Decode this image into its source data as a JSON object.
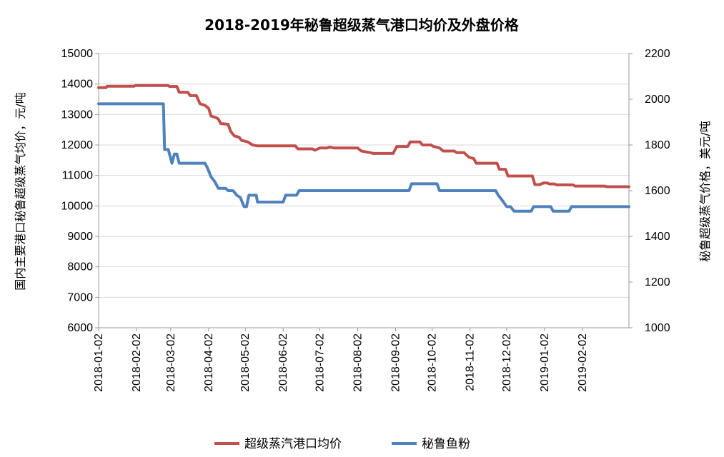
{
  "chart_data": {
    "type": "line",
    "title": "2018-2019年秘鲁超级蒸气港口均价及外盘价格",
    "xlabel": "",
    "ylabel_left": "国内主要港口秘鲁超级蒸气均价，元/吨",
    "ylabel_right": "秘鲁超级蒸气价格，美元/吨",
    "ylim_left": [
      6000,
      15000
    ],
    "ylim_right": [
      1000,
      2200
    ],
    "yticks_left": [
      "6000",
      "7000",
      "8000",
      "9000",
      "10000",
      "11000",
      "12000",
      "13000",
      "14000",
      "15000"
    ],
    "yticks_right": [
      "1000",
      "1200",
      "1400",
      "1600",
      "1800",
      "2000",
      "2200"
    ],
    "xticks": [
      "2018-01-02",
      "2018-02-02",
      "2018-03-02",
      "2018-04-02",
      "2018-05-02",
      "2018-06-02",
      "2018-07-02",
      "2018-08-02",
      "2018-09-02",
      "2018-10-02",
      "2018-11-02",
      "2018-12-02",
      "2019-01-02",
      "2019-02-02"
    ],
    "xlim": [
      "2018-01-02",
      "2019-03-12"
    ],
    "grid": "horizontal",
    "legend_position": "bottom",
    "series": [
      {
        "name": "超级蒸汽港口均价",
        "axis": "left",
        "color": "#C0504D",
        "points": [
          [
            "2018-01-02",
            13880
          ],
          [
            "2018-01-08",
            13880
          ],
          [
            "2018-01-09",
            13930
          ],
          [
            "2018-01-31",
            13930
          ],
          [
            "2018-02-01",
            13950
          ],
          [
            "2018-02-28",
            13950
          ],
          [
            "2018-03-01",
            13920
          ],
          [
            "2018-03-07",
            13920
          ],
          [
            "2018-03-09",
            13730
          ],
          [
            "2018-03-16",
            13730
          ],
          [
            "2018-03-18",
            13620
          ],
          [
            "2018-03-23",
            13620
          ],
          [
            "2018-03-26",
            13350
          ],
          [
            "2018-03-30",
            13300
          ],
          [
            "2018-04-02",
            13200
          ],
          [
            "2018-04-04",
            12950
          ],
          [
            "2018-04-08",
            12900
          ],
          [
            "2018-04-10",
            12850
          ],
          [
            "2018-04-12",
            12700
          ],
          [
            "2018-04-18",
            12680
          ],
          [
            "2018-04-20",
            12450
          ],
          [
            "2018-04-23",
            12300
          ],
          [
            "2018-04-27",
            12250
          ],
          [
            "2018-04-29",
            12150
          ],
          [
            "2018-05-04",
            12100
          ],
          [
            "2018-05-08",
            12000
          ],
          [
            "2018-05-12",
            11970
          ],
          [
            "2018-06-12",
            11970
          ],
          [
            "2018-06-14",
            11870
          ],
          [
            "2018-06-26",
            11870
          ],
          [
            "2018-06-28",
            11830
          ],
          [
            "2018-07-02",
            11900
          ],
          [
            "2018-07-08",
            11900
          ],
          [
            "2018-07-10",
            11930
          ],
          [
            "2018-07-14",
            11900
          ],
          [
            "2018-08-02",
            11900
          ],
          [
            "2018-08-05",
            11800
          ],
          [
            "2018-08-12",
            11750
          ],
          [
            "2018-08-15",
            11720
          ],
          [
            "2018-08-31",
            11720
          ],
          [
            "2018-09-03",
            11950
          ],
          [
            "2018-09-12",
            11950
          ],
          [
            "2018-09-14",
            12100
          ],
          [
            "2018-09-22",
            12100
          ],
          [
            "2018-09-24",
            12000
          ],
          [
            "2018-10-01",
            12000
          ],
          [
            "2018-10-03",
            11950
          ],
          [
            "2018-10-08",
            11900
          ],
          [
            "2018-10-11",
            11800
          ],
          [
            "2018-10-20",
            11800
          ],
          [
            "2018-10-22",
            11750
          ],
          [
            "2018-10-28",
            11750
          ],
          [
            "2018-11-01",
            11600
          ],
          [
            "2018-11-05",
            11550
          ],
          [
            "2018-11-07",
            11400
          ],
          [
            "2018-11-24",
            11400
          ],
          [
            "2018-11-26",
            11200
          ],
          [
            "2018-12-01",
            11200
          ],
          [
            "2018-12-03",
            10980
          ],
          [
            "2018-12-23",
            10980
          ],
          [
            "2018-12-25",
            10700
          ],
          [
            "2018-12-29",
            10700
          ],
          [
            "2019-01-01",
            10750
          ],
          [
            "2019-01-04",
            10750
          ],
          [
            "2019-01-06",
            10720
          ],
          [
            "2019-01-10",
            10720
          ],
          [
            "2019-01-12",
            10690
          ],
          [
            "2019-01-25",
            10690
          ],
          [
            "2019-01-27",
            10650
          ],
          [
            "2019-02-20",
            10650
          ],
          [
            "2019-02-22",
            10630
          ],
          [
            "2019-03-12",
            10630
          ]
        ]
      },
      {
        "name": "秘鲁鱼粉",
        "axis": "right",
        "color": "#4F81BD",
        "points": [
          [
            "2018-01-02",
            1980
          ],
          [
            "2018-02-24",
            1980
          ],
          [
            "2018-02-25",
            1780
          ],
          [
            "2018-02-28",
            1780
          ],
          [
            "2018-03-01",
            1760
          ],
          [
            "2018-03-03",
            1720
          ],
          [
            "2018-03-05",
            1760
          ],
          [
            "2018-03-07",
            1760
          ],
          [
            "2018-03-09",
            1720
          ],
          [
            "2018-03-30",
            1720
          ],
          [
            "2018-04-01",
            1700
          ],
          [
            "2018-04-04",
            1660
          ],
          [
            "2018-04-07",
            1640
          ],
          [
            "2018-04-10",
            1610
          ],
          [
            "2018-04-16",
            1610
          ],
          [
            "2018-04-18",
            1600
          ],
          [
            "2018-04-22",
            1600
          ],
          [
            "2018-04-25",
            1580
          ],
          [
            "2018-04-28",
            1570
          ],
          [
            "2018-05-01",
            1530
          ],
          [
            "2018-05-03",
            1530
          ],
          [
            "2018-05-05",
            1580
          ],
          [
            "2018-05-11",
            1580
          ],
          [
            "2018-05-12",
            1550
          ],
          [
            "2018-06-02",
            1550
          ],
          [
            "2018-06-04",
            1580
          ],
          [
            "2018-06-13",
            1580
          ],
          [
            "2018-06-15",
            1600
          ],
          [
            "2018-09-13",
            1600
          ],
          [
            "2018-09-15",
            1630
          ],
          [
            "2018-10-06",
            1630
          ],
          [
            "2018-10-08",
            1600
          ],
          [
            "2018-11-23",
            1600
          ],
          [
            "2018-11-25",
            1580
          ],
          [
            "2018-11-28",
            1560
          ],
          [
            "2018-12-02",
            1530
          ],
          [
            "2018-12-05",
            1530
          ],
          [
            "2018-12-08",
            1510
          ],
          [
            "2018-12-22",
            1510
          ],
          [
            "2018-12-24",
            1530
          ],
          [
            "2019-01-07",
            1530
          ],
          [
            "2019-01-09",
            1510
          ],
          [
            "2019-01-22",
            1510
          ],
          [
            "2019-01-24",
            1530
          ],
          [
            "2019-03-12",
            1530
          ]
        ]
      }
    ]
  }
}
